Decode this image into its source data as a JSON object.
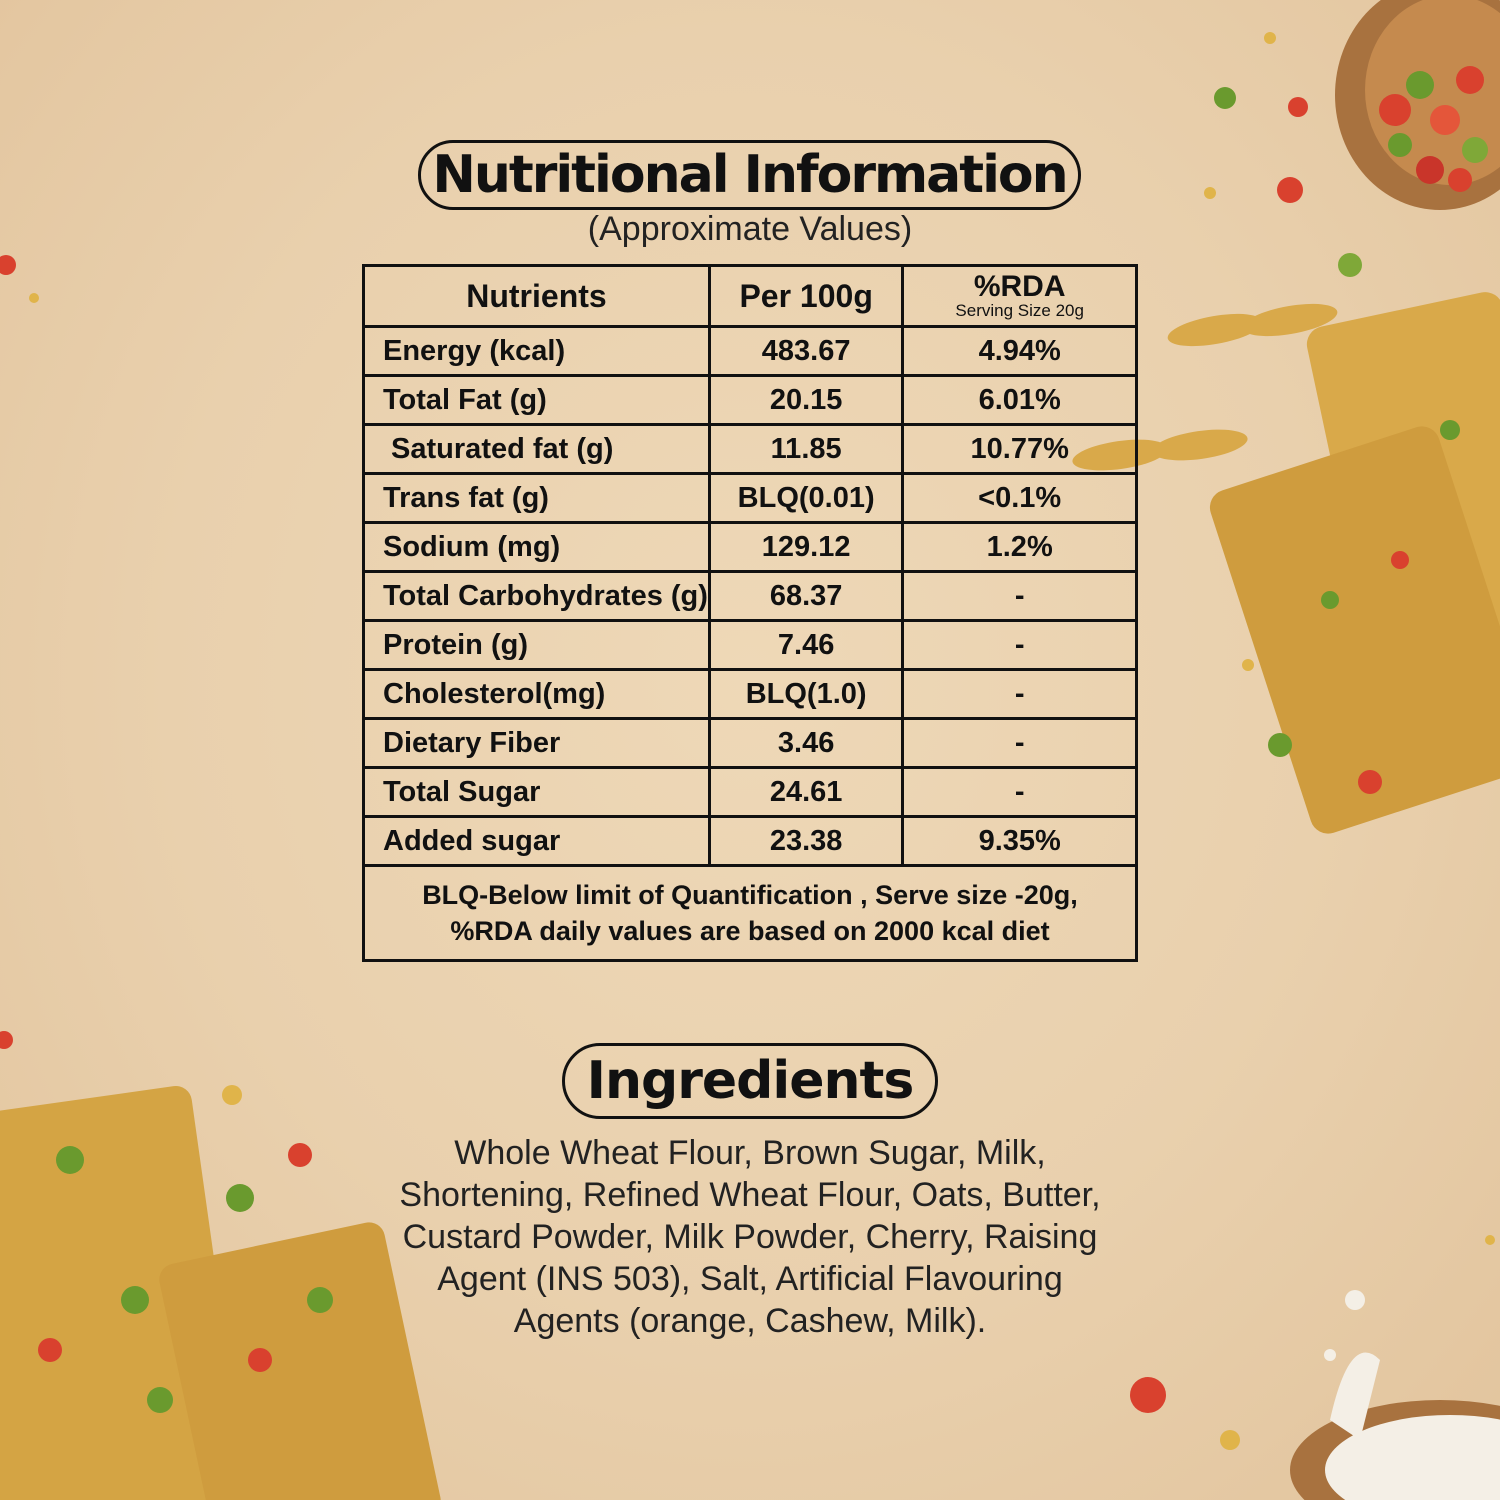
{
  "header": {
    "title": "Nutritional Information",
    "subtitle": "(Approximate Values)"
  },
  "table": {
    "headers": {
      "nutrients": "Nutrients",
      "per100g": "Per 100g",
      "rda": "%RDA",
      "rda_sub": "Serving Size 20g"
    },
    "rows": [
      {
        "nutrient": "Energy (kcal)",
        "per100g": "483.67",
        "rda": "4.94%"
      },
      {
        "nutrient": "Total Fat (g)",
        "per100g": "20.15",
        "rda": "6.01%"
      },
      {
        "nutrient": " Saturated fat (g)",
        "per100g": "11.85",
        "rda": "10.77%"
      },
      {
        "nutrient": "Trans fat (g)",
        "per100g": "BLQ(0.01)",
        "rda": "<0.1%"
      },
      {
        "nutrient": "Sodium (mg)",
        "per100g": "129.12",
        "rda": "1.2%"
      },
      {
        "nutrient": "Total Carbohydrates (g)",
        "per100g": "68.37",
        "rda": "-"
      },
      {
        "nutrient": "Protein (g)",
        "per100g": "7.46",
        "rda": "-"
      },
      {
        "nutrient": "Cholesterol(mg)",
        "per100g": "BLQ(1.0)",
        "rda": "-"
      },
      {
        "nutrient": "Dietary Fiber",
        "per100g": "3.46",
        "rda": "-"
      },
      {
        "nutrient": "Total Sugar",
        "per100g": "24.61",
        "rda": "-"
      },
      {
        "nutrient": "Added sugar",
        "per100g": "23.38",
        "rda": "9.35%"
      }
    ],
    "note_line1": "BLQ-Below limit of Quantification , Serve size -20g,",
    "note_line2": "%RDA daily values are based on 2000 kcal diet"
  },
  "ingredients": {
    "title": "Ingredients",
    "lines": [
      "Whole Wheat Flour, Brown Sugar, Milk,",
      "Shortening, Refined Wheat Flour, Oats, Butter,",
      "Custard Powder, Milk Powder, Cherry, Raising",
      "Agent (INS 503), Salt, Artificial Flavouring",
      "Agents (orange, Cashew, Milk)."
    ]
  },
  "colors": {
    "background": "#ecd4b2",
    "text": "#111111",
    "biscuit": "#d9a94a",
    "cherry_red": "#d9412e",
    "cherry_green": "#6a9a2e"
  }
}
